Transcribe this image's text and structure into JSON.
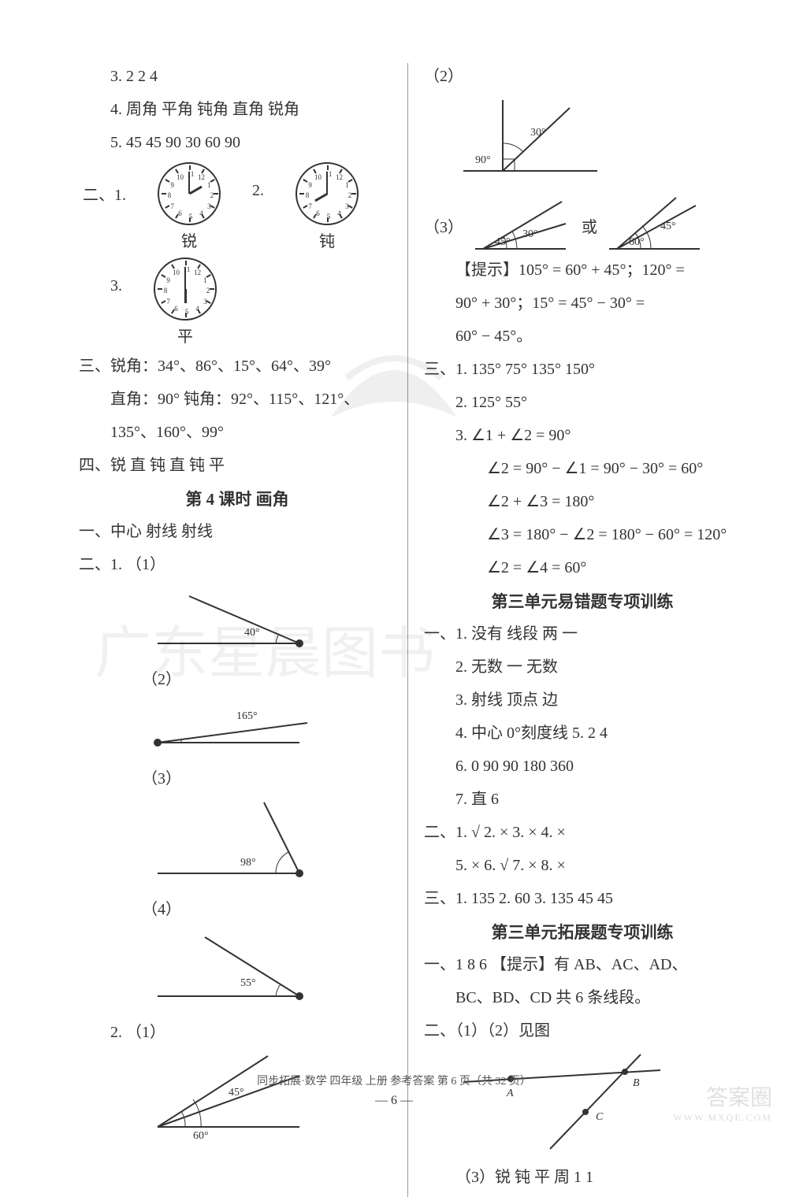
{
  "left": {
    "l1": "3.  2   2   4",
    "l2": "4.  周角   平角   钝角   直角   锐角",
    "l3": "5.  45   45   90   30   60   90",
    "q2lead": "二、1.",
    "q2num2": "2.",
    "clock1_label": "锐",
    "clock2_label": "钝",
    "q2num3": "3.",
    "clock3_label": "平",
    "q3a": "三、锐角：34°、86°、15°、64°、39°",
    "q3b": "直角：90°    钝角：92°、115°、121°、",
    "q3c": "135°、160°、99°",
    "q4": "四、锐   直   钝   直   钝   平",
    "sec4_title": "第 4 课时   画角",
    "s4_1": "一、中心   射线   射线",
    "s4_2": "二、1.  （1）",
    "ang1": "40°",
    "s4_2_2": "（2）",
    "ang2": "165°",
    "s4_2_3": "（3）",
    "ang3": "98°",
    "s4_2_4": "（4）",
    "ang4": "55°",
    "s4_2b": "2.  （1）",
    "ang5a": "45°",
    "ang5b": "60°",
    "clocks": {
      "clock1": {
        "hour": 2,
        "minute": 0
      },
      "clock2": {
        "hour": 8,
        "minute": 0
      },
      "clock3": {
        "hour": 6,
        "minute": 0
      }
    }
  },
  "right": {
    "r1": "（2）",
    "angR2a": "30°",
    "angR2b": "90°",
    "r2": "（3）",
    "r2mid": "或",
    "angR3a": "45°",
    "angR3b": "30°",
    "angR3c": "60°",
    "angR3d": "45°",
    "hint1": "【提示】105° = 60° + 45°；120° =",
    "hint2": "90° + 30°；15° = 45° − 30° =",
    "hint3": "60° − 45°。",
    "q3_1": "三、1.  135°   75°   135°   150°",
    "q3_2": "2.  125°   55°",
    "q3_3": "3.  ∠1 + ∠2 = 90°",
    "q3_3b": "∠2 = 90° − ∠1 = 90° − 30° = 60°",
    "q3_3c": "∠2 + ∠3 = 180°",
    "q3_3d": "∠3 = 180° − ∠2 = 180° − 60° = 120°",
    "q3_3e": "∠2 = ∠4 = 60°",
    "unit3err_title": "第三单元易错题专项训练",
    "u3_1": "一、1.  没有   线段   两   一",
    "u3_2": "2.  无数   一   无数",
    "u3_3": "3.  射线   顶点   边",
    "u3_4": "4.  中心   0°刻度线     5.  2   4",
    "u3_6": "6.  0   90   90   180   360",
    "u3_7": "7.  直   6",
    "u3_tf1": "二、1.  √   2.  ×   3.  ×   4.  ×",
    "u3_tf2": "5.  ×   6.  √   7.  ×   8.  ×",
    "u3_q3": "三、1.  135   2.  60   3.  135   45   45",
    "unit3ext_title": "第三单元拓展题专项训练",
    "ext1": "一、1   8   6  【提示】有 AB、AC、AD、",
    "ext1b": "BC、BD、CD 共 6 条线段。",
    "ext2": "二、（1）（2）见图",
    "nodeA": "A",
    "nodeB": "B",
    "nodeC": "C",
    "ext3": "（3）锐   钝   平   周   1   1"
  },
  "footer": "同步拓展·数学   四年级   上册   参考答案   第 6 页（共 32 页）",
  "pagenum": "— 6 —",
  "watermark": "广东星晨图书",
  "corner": "答案圈",
  "cornerurl": "WWW.MXQE.COM",
  "colors": {
    "text": "#333333",
    "bg": "#ffffff",
    "line": "#333333"
  }
}
